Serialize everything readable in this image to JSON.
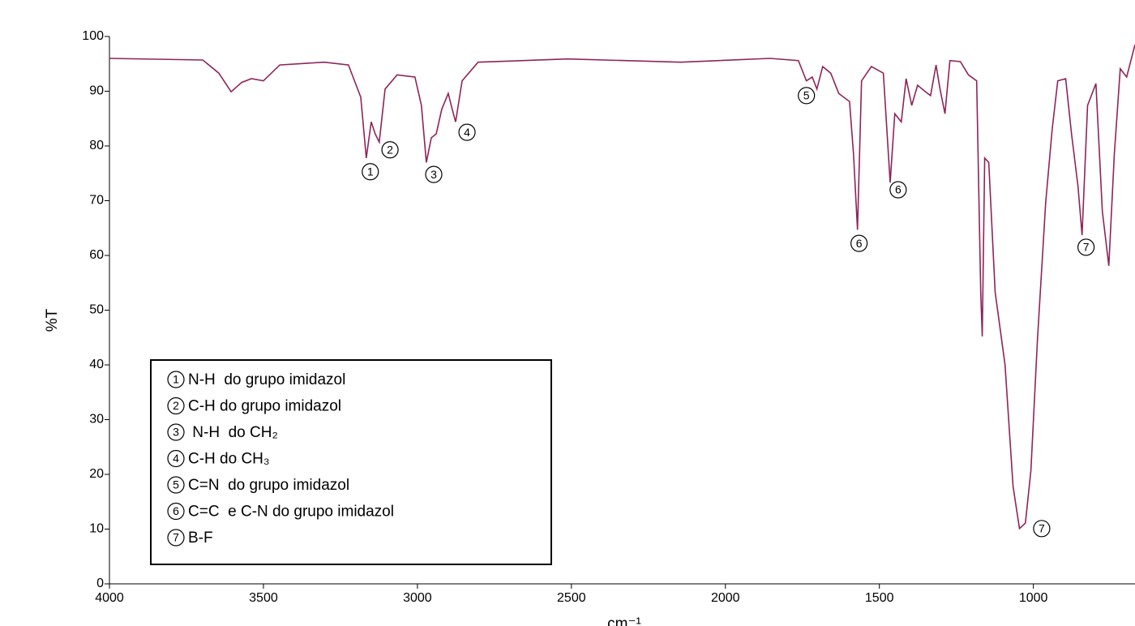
{
  "chart_data": {
    "type": "line",
    "x_label": "cm⁻¹",
    "y_label": "%T",
    "xlim": [
      4000,
      670
    ],
    "ylim": [
      0,
      100
    ],
    "xticks": [
      4000,
      3500,
      3000,
      2500,
      2000,
      1500,
      1000
    ],
    "yticks": [
      0,
      10,
      20,
      30,
      40,
      50,
      60,
      70,
      80,
      90,
      100
    ],
    "series": [
      {
        "color": "#8e2459",
        "x": [
          4000,
          3697,
          3645,
          3605,
          3571,
          3539,
          3500,
          3447,
          3303,
          3224,
          3184,
          3166,
          3150,
          3137,
          3124,
          3105,
          3066,
          3008,
          2987,
          2971,
          2955,
          2939,
          2921,
          2900,
          2887,
          2876,
          2855,
          2803,
          2513,
          2145,
          1855,
          1763,
          1737,
          1718,
          1703,
          1684,
          1658,
          1632,
          1597,
          1584,
          1571,
          1558,
          1526,
          1487,
          1465,
          1450,
          1429,
          1413,
          1395,
          1376,
          1355,
          1334,
          1316,
          1303,
          1287,
          1271,
          1237,
          1211,
          1184,
          1171,
          1166,
          1158,
          1145,
          1124,
          1092,
          1066,
          1045,
          1026,
          1008,
          987,
          960,
          939,
          921,
          895,
          876,
          855,
          842,
          824,
          797,
          776,
          755,
          737,
          718,
          697,
          670
        ],
        "values": [
          96,
          95.7,
          93.3,
          89.9,
          91.6,
          92.3,
          91.9,
          94.8,
          95.3,
          94.8,
          88.9,
          77.8,
          84.4,
          82.2,
          80.7,
          90.4,
          93.0,
          92.6,
          87.4,
          77.0,
          81.5,
          82.2,
          86.7,
          89.6,
          86.7,
          84.4,
          91.9,
          95.3,
          95.9,
          95.3,
          96,
          95.6,
          91.9,
          92.6,
          90.4,
          94.5,
          93.3,
          89.6,
          88.1,
          78.5,
          64.7,
          91.9,
          94.5,
          93.3,
          73.3,
          85.9,
          84.4,
          92.3,
          87.4,
          91.1,
          90.1,
          89.2,
          94.8,
          90.4,
          85.9,
          95.6,
          95.4,
          93.0,
          91.9,
          53.3,
          45.2,
          77.8,
          77.0,
          53.3,
          40,
          17.8,
          10.1,
          11.1,
          20.7,
          44.4,
          69.6,
          83,
          91.9,
          92.3,
          82.2,
          72.6,
          63.7,
          87.4,
          91.4,
          68.1,
          58.1,
          78.5,
          94.1,
          92.6,
          98.5
        ]
      }
    ],
    "annotations": [
      {
        "label": "1",
        "x": 3153,
        "y": 75.3
      },
      {
        "label": "2",
        "x": 3089,
        "y": 79.3
      },
      {
        "label": "3",
        "x": 2947,
        "y": 74.8
      },
      {
        "label": "4",
        "x": 2839,
        "y": 82.5
      },
      {
        "label": "5",
        "x": 1737,
        "y": 89.2
      },
      {
        "label": "6",
        "x": 1566,
        "y": 62.2
      },
      {
        "label": "6",
        "x": 1439,
        "y": 72
      },
      {
        "label": "7",
        "x": 829,
        "y": 61.5
      },
      {
        "label": "7",
        "x": 973,
        "y": 10.1
      }
    ],
    "legend_items": [
      {
        "number": "1",
        "text": "N-H  do grupo imidazol"
      },
      {
        "number": "2",
        "text": "C-H do grupo imidazol"
      },
      {
        "number": "3",
        "text": " N-H  do CH₂"
      },
      {
        "number": "4",
        "text": "C-H do CH₃"
      },
      {
        "number": "5",
        "text": "C=N  do grupo imidazol"
      },
      {
        "number": "6",
        "text": "C=C  e C-N do grupo imidazol"
      },
      {
        "number": "7",
        "text": "B-F"
      }
    ]
  }
}
